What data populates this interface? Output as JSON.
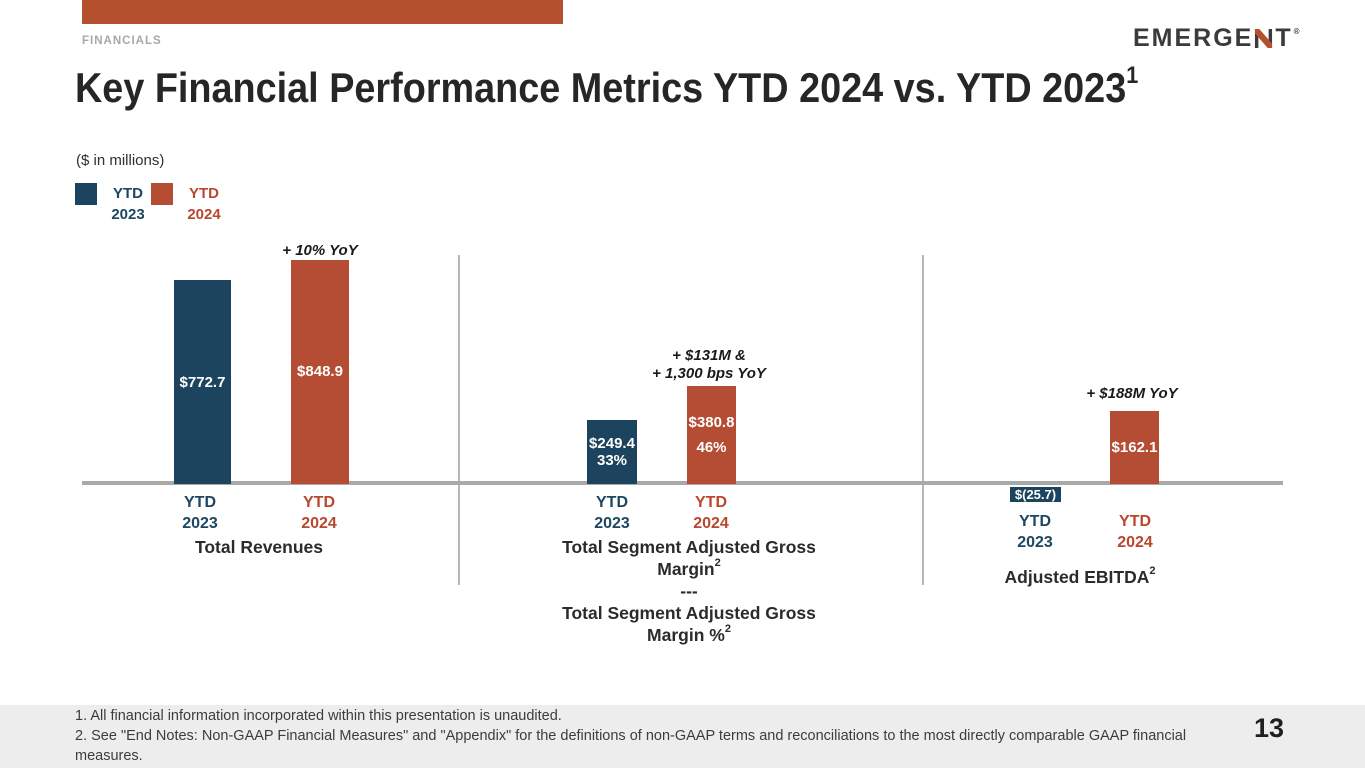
{
  "slide": {
    "eyebrow": "FINANCIALS",
    "title": {
      "text": "Key Financial Performance Metrics YTD 2024 vs. YTD 2023",
      "superscript": "1"
    },
    "units_note": "($ in millions)",
    "page_number": "13"
  },
  "logo": {
    "part1": "EMERGE",
    "part2": "T",
    "mark": "®"
  },
  "legend": {
    "items": [
      {
        "label": "YTD 2023",
        "color": "#1d445f"
      },
      {
        "label": "YTD 2024",
        "color": "#b44d33"
      }
    ]
  },
  "chart_data": [
    {
      "type": "bar",
      "title": "Total Revenues",
      "categories": [
        "YTD 2023",
        "YTD 2024"
      ],
      "values": [
        772.7,
        848.9
      ],
      "value_labels": [
        "$772.7",
        "$848.9"
      ],
      "annotation_lines": [
        "+ 10% YoY"
      ],
      "unit": "$ in millions",
      "series_colors": [
        "#1d445f",
        "#b44d33"
      ]
    },
    {
      "type": "bar",
      "title_top_lines": [
        "Total Segment Adjusted Gross",
        "Margin"
      ],
      "title_separator": "---",
      "title_bottom_lines": [
        "Total Segment Adjusted Gross",
        "Margin %"
      ],
      "footnote_ref": "2",
      "categories": [
        "YTD 2023",
        "YTD 2024"
      ],
      "values": [
        249.4,
        380.8
      ],
      "value_labels": [
        "$249.4",
        "$380.8"
      ],
      "pct_labels": [
        "33%",
        "46%"
      ],
      "annotation_lines": [
        "+ $131M &",
        "+ 1,300 bps YoY"
      ],
      "unit": "$ in millions",
      "series_colors": [
        "#1d445f",
        "#b44d33"
      ]
    },
    {
      "type": "bar",
      "title": "Adjusted EBITDA",
      "footnote_ref": "2",
      "categories": [
        "YTD 2023",
        "YTD 2024"
      ],
      "values": [
        -25.7,
        162.1
      ],
      "value_labels": [
        "$(25.7)",
        "$162.1"
      ],
      "annotation_lines": [
        "+ $188M YoY"
      ],
      "unit": "$ in millions",
      "series_colors": [
        "#1d445f",
        "#b44d33"
      ]
    }
  ],
  "footnotes": [
    "1. All financial information incorporated within this presentation is unaudited.",
    "2. See \"End Notes: Non-GAAP Financial Measures\" and \"Appendix\" for the definitions of non-GAAP terms and reconciliations to the most directly comparable GAAP financial measures."
  ],
  "colors": {
    "ytd2023_blue": "#1d445f",
    "ytd2024_orange": "#b44d33",
    "accent_bar": "#b5502f",
    "axis_gray": "#a9a9a9",
    "footer_bg": "#ededed",
    "title_text": "#262626"
  }
}
